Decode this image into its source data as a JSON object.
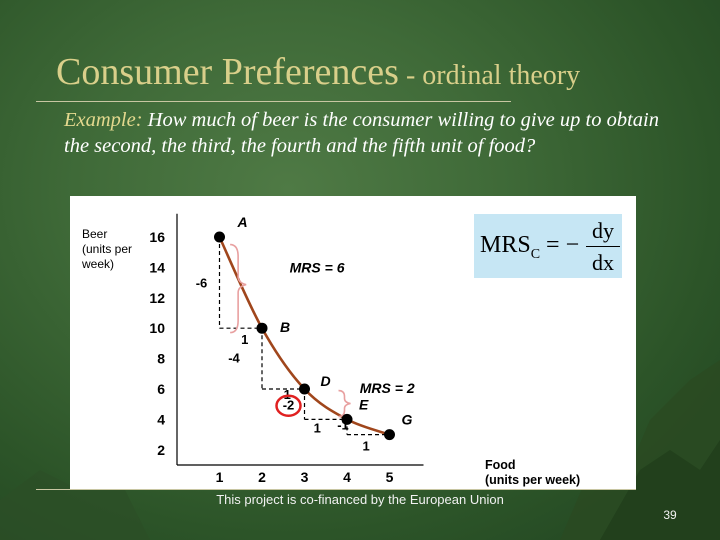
{
  "slide": {
    "title_main": "Consumer Preferences",
    "title_sub": " - ordinal theory",
    "example_lead": "Example:",
    "example_text": " How much of beer is the consumer willing to give up to obtain the second, the third, the fourth and the fifth unit of food?",
    "formula": {
      "lhs": "MRS",
      "lhs_sub": "C",
      "equals": " = −",
      "numerator": "dy",
      "denominator": "dx"
    },
    "footer": "This project is co-financed by the European Union",
    "page_number": "39"
  },
  "chart_data": {
    "type": "line",
    "ylabel_lines": [
      "Beer",
      "(units per",
      "week)"
    ],
    "xlabel_lines": [
      "Food",
      "(units per week)"
    ],
    "x_ticks": [
      "1",
      "2",
      "3",
      "4",
      "5"
    ],
    "y_ticks": [
      "16",
      "14",
      "12",
      "10",
      "8",
      "6",
      "4",
      "2"
    ],
    "xlim": [
      0,
      5.8
    ],
    "ylim": [
      1,
      17
    ],
    "points": [
      {
        "label": "A",
        "x": 1,
        "y": 16
      },
      {
        "label": "B",
        "x": 2,
        "y": 10
      },
      {
        "label": "D",
        "x": 3,
        "y": 6
      },
      {
        "label": "E",
        "x": 4,
        "y": 4
      },
      {
        "label": "G",
        "x": 5,
        "y": 3
      }
    ],
    "steps": [
      {
        "drop": "-6",
        "run": "1"
      },
      {
        "drop": "-4",
        "run": "1"
      },
      {
        "drop": "-2",
        "run": "1"
      },
      {
        "drop": "-1",
        "run": "1"
      }
    ],
    "annotations": [
      {
        "text": "MRS = 6"
      },
      {
        "text": "MRS = 2"
      }
    ],
    "colors": {
      "curve": "#a0461c",
      "point": "#000000",
      "highlight": "#e02020",
      "brace": "#e8a0a0",
      "text": "#000000"
    }
  }
}
